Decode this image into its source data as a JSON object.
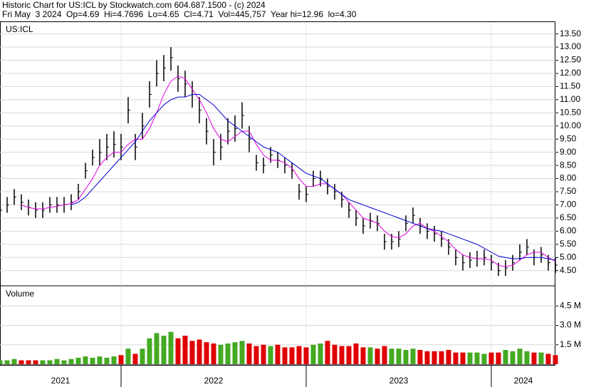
{
  "chart_data": {
    "type": "stock",
    "header": [
      "Historic Chart for US:ICL by Stockwatch.com 604.687.1500 - (c) 2024",
      "Fri May  3 2024  Op=4.69  Hi=4.7696  Lo=4.65  Cl=4.71  Vol=445,757  Year hi=12.96  lo=4.30"
    ],
    "symbol": "US:ICL",
    "volume_title": "Volume",
    "xlim": [
      0,
      156
    ],
    "xticks": [
      34,
      86,
      138
    ],
    "year_labels": [
      {
        "label": "2021",
        "from": 0,
        "to": 34
      },
      {
        "label": "2022",
        "from": 34,
        "to": 86
      },
      {
        "label": "2023",
        "from": 86,
        "to": 138
      },
      {
        "label": "2024",
        "from": 138,
        "to": 156
      }
    ],
    "ylim": [
      3.95,
      13.95
    ],
    "yticks": [
      {
        "value": 4.5,
        "label": "4.50"
      },
      {
        "value": 5,
        "label": "5.00"
      },
      {
        "value": 5.5,
        "label": "5.50"
      },
      {
        "value": 6,
        "label": "6.00"
      },
      {
        "value": 6.5,
        "label": "6.50"
      },
      {
        "value": 7,
        "label": "7.00"
      },
      {
        "value": 7.5,
        "label": "7.50"
      },
      {
        "value": 8,
        "label": "8.00"
      },
      {
        "value": 8.5,
        "label": "8.50"
      },
      {
        "value": 9,
        "label": "9.00"
      },
      {
        "value": 9.5,
        "label": "9.50"
      },
      {
        "value": 10,
        "label": "10.00"
      },
      {
        "value": 10.5,
        "label": "10.50"
      },
      {
        "value": 11,
        "label": "11.00"
      },
      {
        "value": 11.5,
        "label": "11.50"
      },
      {
        "value": 12,
        "label": "12.00"
      },
      {
        "value": 12.5,
        "label": "12.50"
      },
      {
        "value": 13,
        "label": "13.00"
      },
      {
        "value": 13.5,
        "label": "13.50"
      }
    ],
    "y2lim": [
      0,
      6
    ],
    "y2ticks": [
      {
        "value": 1.5,
        "label": "1.5 M"
      },
      {
        "value": 3,
        "label": "3.0 M"
      },
      {
        "value": 4.5,
        "label": "4.5 M"
      }
    ],
    "grid": true,
    "x": [
      0,
      2,
      4,
      6,
      8,
      10,
      12,
      14,
      16,
      18,
      20,
      22,
      24,
      26,
      28,
      30,
      32,
      34,
      36,
      38,
      40,
      42,
      44,
      46,
      48,
      50,
      52,
      54,
      56,
      58,
      60,
      62,
      64,
      66,
      68,
      70,
      72,
      74,
      76,
      78,
      80,
      82,
      84,
      86,
      88,
      90,
      92,
      94,
      96,
      98,
      100,
      102,
      104,
      106,
      108,
      110,
      112,
      114,
      116,
      118,
      120,
      122,
      124,
      126,
      128,
      130,
      132,
      134,
      136,
      138,
      140,
      142,
      144,
      146,
      148,
      150,
      152,
      154,
      156
    ],
    "high": [
      7.1,
      7.3,
      7.6,
      7.4,
      7.2,
      7.1,
      7.1,
      7.3,
      7.3,
      7.3,
      7.4,
      7.8,
      8.6,
      9.1,
      9.5,
      9.7,
      9.8,
      9.7,
      11.1,
      9.7,
      10.5,
      11.7,
      12.5,
      12.7,
      13.0,
      12.3,
      12.1,
      11.7,
      11.1,
      10.3,
      9.5,
      9.7,
      10.3,
      10.4,
      10.9,
      10.0,
      8.9,
      8.8,
      9.2,
      9.0,
      8.8,
      8.6,
      7.8,
      7.7,
      8.3,
      8.3,
      8.0,
      7.8,
      7.5,
      7.1,
      6.8,
      6.5,
      6.7,
      6.6,
      5.9,
      5.9,
      6.0,
      6.6,
      6.9,
      6.5,
      6.3,
      6.2,
      6.0,
      5.7,
      5.3,
      5.1,
      5.2,
      5.25,
      5.3,
      5.1,
      4.8,
      4.9,
      5.1,
      5.5,
      5.7,
      5.3,
      5.4,
      5.1,
      5.0
    ],
    "low": [
      6.5,
      6.7,
      7.0,
      6.8,
      6.6,
      6.5,
      6.5,
      6.7,
      6.7,
      6.7,
      6.8,
      7.2,
      8.0,
      8.5,
      8.5,
      8.7,
      8.8,
      8.7,
      10.1,
      8.7,
      9.5,
      10.7,
      11.5,
      11.7,
      12.1,
      11.3,
      11.1,
      10.7,
      10.1,
      9.3,
      8.5,
      8.7,
      9.3,
      9.4,
      9.9,
      9.0,
      8.3,
      8.2,
      8.6,
      8.4,
      8.2,
      8.0,
      7.2,
      7.1,
      7.7,
      7.7,
      7.4,
      7.2,
      6.9,
      6.5,
      6.2,
      5.9,
      6.1,
      6.0,
      5.3,
      5.3,
      5.4,
      6.0,
      6.3,
      5.9,
      5.7,
      5.6,
      5.4,
      5.1,
      4.7,
      4.5,
      4.6,
      4.65,
      4.7,
      4.5,
      4.3,
      4.3,
      4.5,
      4.9,
      5.1,
      4.7,
      4.8,
      4.5,
      4.4
    ],
    "close": [
      6.8,
      7.0,
      7.3,
      7.1,
      6.9,
      6.8,
      6.8,
      7.0,
      7.0,
      7.0,
      7.1,
      7.5,
      8.3,
      8.8,
      9.0,
      9.2,
      9.3,
      9.2,
      10.6,
      9.2,
      10.0,
      11.2,
      12.0,
      12.2,
      12.6,
      11.8,
      11.6,
      11.2,
      10.6,
      9.8,
      9.0,
      9.2,
      9.8,
      9.9,
      10.4,
      9.5,
      8.6,
      8.5,
      8.9,
      8.7,
      8.5,
      8.3,
      7.5,
      7.4,
      8.0,
      8.0,
      7.7,
      7.5,
      7.2,
      6.8,
      6.5,
      6.2,
      6.4,
      6.3,
      5.6,
      5.6,
      5.7,
      6.3,
      6.6,
      6.2,
      6.0,
      5.9,
      5.7,
      5.4,
      5.0,
      4.8,
      4.9,
      4.95,
      5.0,
      4.8,
      4.5,
      4.6,
      4.8,
      5.2,
      5.4,
      5.0,
      5.1,
      4.8,
      4.71
    ],
    "price_color": "#000000",
    "up_color": "#44aa22",
    "down_color": "#e00000",
    "moving_averages": [
      {
        "color": "#e000e0",
        "values": [
          null,
          null,
          null,
          7.0,
          6.9,
          6.85,
          6.85,
          6.9,
          6.95,
          7.0,
          7.05,
          7.2,
          7.6,
          8.0,
          8.5,
          8.8,
          9.0,
          9.0,
          9.3,
          9.5,
          9.5,
          9.9,
          10.5,
          11.2,
          11.7,
          11.9,
          11.8,
          11.4,
          11.0,
          10.5,
          9.9,
          9.5,
          9.4,
          9.6,
          9.8,
          9.8,
          9.3,
          8.9,
          8.7,
          8.7,
          8.6,
          8.4,
          8.0,
          7.7,
          7.7,
          7.8,
          7.8,
          7.6,
          7.4,
          7.1,
          6.8,
          6.5,
          6.4,
          6.3,
          6.0,
          5.8,
          5.75,
          5.9,
          6.2,
          6.3,
          6.1,
          6.0,
          5.8,
          5.6,
          5.3,
          5.1,
          5.0,
          4.95,
          4.95,
          4.9,
          4.7,
          4.65,
          4.7,
          4.9,
          5.1,
          5.2,
          5.2,
          5.0,
          4.85
        ]
      },
      {
        "color": "#0000d0",
        "values": [
          null,
          null,
          null,
          null,
          null,
          null,
          null,
          null,
          null,
          null,
          7.0,
          7.1,
          7.3,
          7.6,
          7.9,
          8.2,
          8.5,
          8.8,
          9.1,
          9.4,
          9.8,
          10.2,
          10.5,
          10.8,
          11.0,
          11.1,
          11.1,
          11.2,
          11.2,
          11.0,
          10.8,
          10.5,
          10.2,
          10.0,
          9.8,
          9.6,
          9.4,
          9.2,
          9.1,
          9.0,
          8.8,
          8.6,
          8.4,
          8.2,
          8.1,
          8.0,
          7.8,
          7.6,
          7.4,
          7.2,
          7.1,
          7.0,
          6.9,
          6.8,
          6.7,
          6.6,
          6.5,
          6.4,
          6.3,
          6.2,
          6.1,
          6.05,
          6.0,
          5.9,
          5.8,
          5.7,
          5.6,
          5.5,
          5.35,
          5.2,
          5.05,
          5.0,
          4.95,
          4.95,
          5.0,
          5.0,
          5.0,
          4.95,
          4.9
        ]
      }
    ],
    "volume": [
      0.3,
      0.3,
      0.4,
      0.3,
      0.3,
      0.3,
      0.3,
      0.3,
      0.4,
      0.3,
      0.4,
      0.5,
      0.6,
      0.5,
      0.6,
      0.5,
      0.6,
      0.7,
      1.2,
      0.8,
      1.2,
      2.0,
      2.4,
      2.2,
      2.5,
      2.0,
      2.2,
      1.8,
      1.9,
      1.7,
      1.6,
      1.5,
      1.6,
      1.7,
      1.8,
      1.6,
      1.4,
      1.5,
      1.4,
      1.5,
      1.3,
      1.3,
      1.4,
      1.3,
      1.5,
      1.6,
      1.8,
      1.5,
      1.4,
      1.4,
      1.6,
      1.3,
      1.3,
      1.2,
      1.4,
      1.2,
      1.2,
      1.1,
      1.2,
      1.1,
      1.0,
      1.0,
      1.0,
      1.1,
      0.9,
      0.9,
      0.9,
      0.9,
      0.8,
      0.9,
      0.9,
      1.1,
      1.0,
      1.2,
      1.0,
      0.9,
      0.9,
      0.8,
      0.7
    ]
  }
}
